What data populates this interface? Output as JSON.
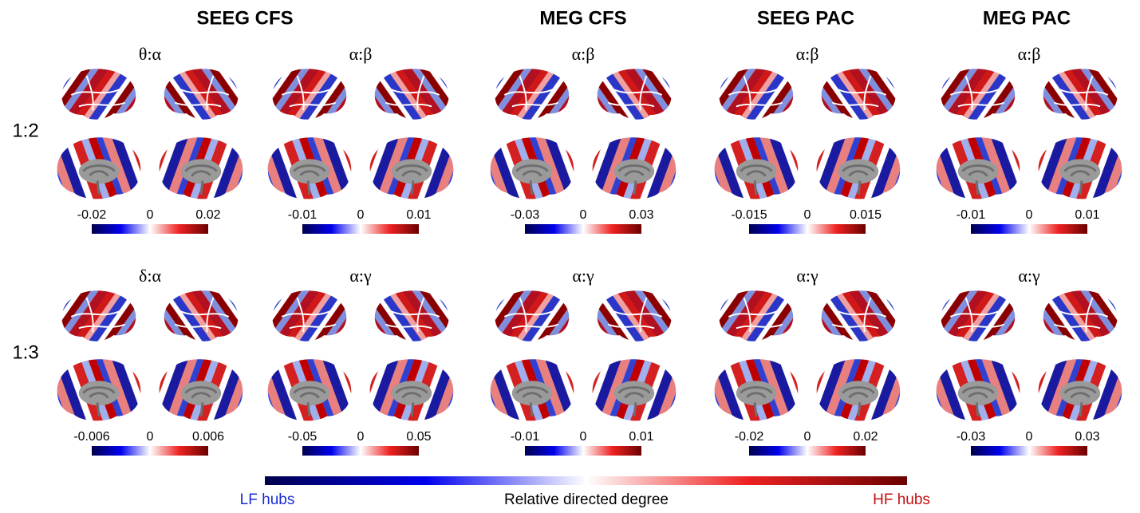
{
  "columns": [
    "SEEG CFS",
    "MEG CFS",
    "SEEG PAC",
    "MEG PAC"
  ],
  "rows": [
    {
      "label": "1:2",
      "panels": [
        {
          "ratio": "θ:α",
          "colorbar": [
            -0.02,
            0,
            0.02
          ]
        },
        {
          "ratio": "α:β",
          "colorbar": [
            -0.01,
            0,
            0.01
          ]
        },
        {
          "ratio": "α:β",
          "colorbar": [
            -0.03,
            0,
            0.03
          ]
        },
        {
          "ratio": "α:β",
          "colorbar": [
            -0.015,
            0,
            0.015
          ]
        },
        {
          "ratio": "α:β",
          "colorbar": [
            -0.01,
            0,
            0.01
          ]
        }
      ]
    },
    {
      "label": "1:3",
      "panels": [
        {
          "ratio": "δ:α",
          "colorbar": [
            -0.006,
            0,
            0.006
          ]
        },
        {
          "ratio": "α:γ",
          "colorbar": [
            -0.05,
            0,
            0.05
          ]
        },
        {
          "ratio": "α:γ",
          "colorbar": [
            -0.01,
            0,
            0.01
          ]
        },
        {
          "ratio": "α:γ",
          "colorbar": [
            -0.02,
            0,
            0.02
          ]
        },
        {
          "ratio": "α:γ",
          "colorbar": [
            -0.03,
            0,
            0.03
          ]
        }
      ]
    }
  ],
  "legend": {
    "left": "LF hubs",
    "center": "Relative directed degree",
    "right": "HF hubs"
  }
}
